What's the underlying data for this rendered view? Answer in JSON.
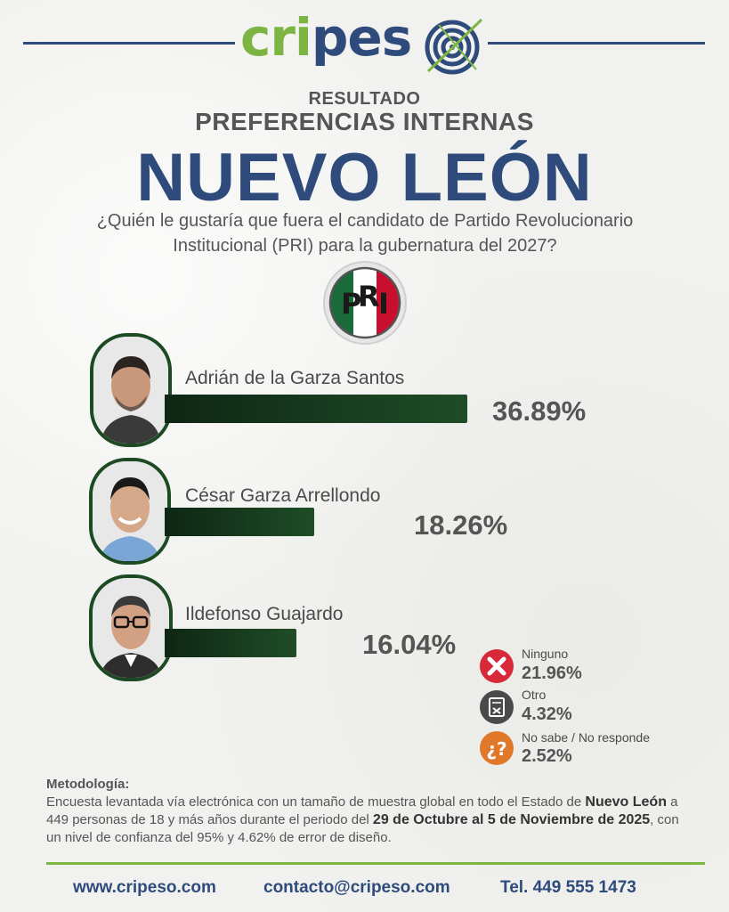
{
  "brand": {
    "name_green": "cri",
    "name_blue": "pes",
    "accent_green": "#7db543",
    "accent_blue": "#2f4b7c"
  },
  "header": {
    "resultado": "RESULTADO",
    "subtitle": "PREFERENCIAS INTERNAS",
    "state": "NUEVO LEÓN",
    "question": "¿Quién le gustaría que fuera el candidato de Partido Revolucionario Institucional (PRI) para la gubernatura del 2027?"
  },
  "party_logo": {
    "letters": [
      "P",
      "R",
      "I"
    ],
    "colors": [
      "#1a6b3a",
      "#ffffff",
      "#c8102e"
    ]
  },
  "chart_data": {
    "type": "bar",
    "orientation": "horizontal",
    "categories": [
      "Adrián de la Garza Santos",
      "César Garza Arrellondo",
      "Ildefonso Guajardo",
      "Ninguno",
      "Otro",
      "No sabe / No responde"
    ],
    "values": [
      36.89,
      18.26,
      16.04,
      21.96,
      4.32,
      2.52
    ],
    "value_labels": [
      "36.89%",
      "18.26%",
      "16.04%",
      "21.96%",
      "4.32%",
      "2.52%"
    ],
    "unit": "%",
    "bar_color": "#14361b"
  },
  "others": [
    {
      "label": "Ninguno",
      "value": "21.96%",
      "icon": "x-mark-icon",
      "color": "#d8293a"
    },
    {
      "label": "Otro",
      "value": "4.32%",
      "icon": "ballot-icon",
      "color": "#4a4a4a"
    },
    {
      "label": "No sabe / No responde",
      "value": "2.52%",
      "icon": "question-icon",
      "color": "#e0782a"
    }
  ],
  "methodology": {
    "title": "Metodología:",
    "text_1": "Encuesta levantada vía electrónica con un tamaño de muestra global en todo el Estado de ",
    "bold_1": "Nuevo León",
    "text_2": " a 449 personas de 18 y más años durante el periodo del ",
    "bold_2": "29 de Octubre al 5 de Noviembre de 2025",
    "text_3": ", con un nivel de confianza del 95% y 4.62% de error de diseño."
  },
  "footer": {
    "website": "www.cripeso.com",
    "email": "contacto@cripeso.com",
    "phone": "Tel. 449 555 1473"
  }
}
